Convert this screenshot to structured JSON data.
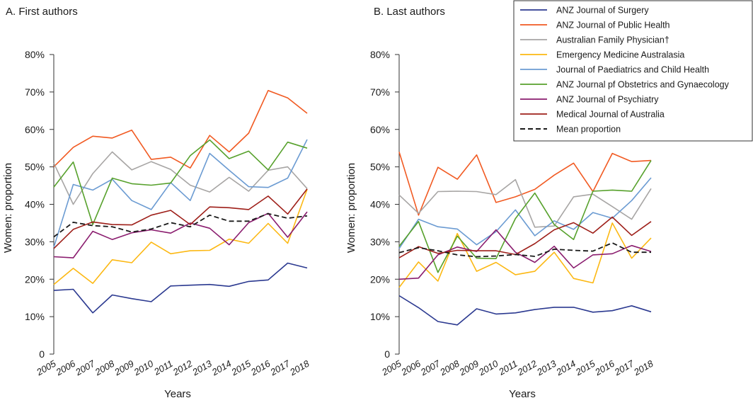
{
  "chart_data": [
    {
      "type": "line",
      "title": "A. First authors",
      "xlabel": "Years",
      "ylabel": "Women: proportion",
      "ylim": [
        0,
        80
      ],
      "yticks": [
        "0",
        "10%",
        "20%",
        "30%",
        "40%",
        "50%",
        "60%",
        "70%",
        "80%"
      ],
      "categories": [
        "2005",
        "2006",
        "2007",
        "2008",
        "2009",
        "2010",
        "2011",
        "2012",
        "2013",
        "2014",
        "2015",
        "2016",
        "2017",
        "2018"
      ],
      "series": [
        {
          "name": "ANZ Journal of Surgery",
          "color": "#2b3990",
          "values": [
            17.0,
            17.3,
            11.0,
            15.8,
            14.8,
            14.0,
            18.2,
            18.4,
            18.6,
            18.1,
            19.4,
            19.8,
            24.3,
            23.0
          ]
        },
        {
          "name": "ANZ Journal of Public Health",
          "color": "#f15a22",
          "values": [
            50.0,
            55.2,
            58.2,
            57.7,
            59.8,
            52.0,
            52.6,
            49.7,
            58.4,
            54.0,
            59.0,
            70.4,
            68.4,
            64.3
          ]
        },
        {
          "name": "Australian Family Physician†",
          "color": "#a7a5a4",
          "values": [
            51.0,
            40.0,
            48.2,
            54.0,
            49.2,
            51.4,
            49.3,
            45.1,
            43.3,
            47.2,
            43.5,
            49.1,
            50.0,
            44.2
          ]
        },
        {
          "name": "Emergency Medicine Australasia",
          "color": "#fcb813",
          "values": [
            18.6,
            22.9,
            18.9,
            25.2,
            24.4,
            29.9,
            26.8,
            27.6,
            27.7,
            30.7,
            29.6,
            34.9,
            29.6,
            44.0
          ]
        },
        {
          "name": "Journal of Paediatrics and Child Health",
          "color": "#6b9bd2",
          "values": [
            28.5,
            45.3,
            43.8,
            46.7,
            41.0,
            38.6,
            45.8,
            41.0,
            53.6,
            49.1,
            44.7,
            44.5,
            47.0,
            57.3
          ]
        },
        {
          "name": "ANZ Journal pf Obstetrics and Gynaecology",
          "color": "#57a12c",
          "values": [
            44.6,
            51.3,
            34.6,
            47.0,
            45.5,
            45.1,
            45.7,
            53.0,
            57.2,
            52.2,
            54.2,
            49.2,
            56.6,
            55.0
          ]
        },
        {
          "name": "ANZ Journal of Psychiatry",
          "color": "#8a1c6e",
          "values": [
            26.0,
            25.7,
            32.8,
            30.6,
            32.4,
            33.2,
            32.3,
            35.0,
            33.6,
            29.2,
            35.1,
            37.6,
            31.2,
            38.0
          ]
        },
        {
          "name": "Medical Journal of Australia",
          "color": "#9e1f19",
          "values": [
            28.2,
            33.3,
            35.3,
            34.6,
            34.5,
            37.1,
            38.4,
            34.6,
            39.3,
            39.1,
            38.6,
            42.2,
            37.4,
            44.1
          ]
        },
        {
          "name": "Mean proportion",
          "color": "#1a1a1a",
          "dashed": true,
          "values": [
            31.3,
            35.2,
            34.3,
            34.0,
            32.6,
            33.4,
            35.1,
            34.0,
            37.1,
            35.5,
            35.5,
            37.5,
            36.3,
            36.9
          ]
        }
      ]
    },
    {
      "type": "line",
      "title": "B. Last authors",
      "xlabel": "Years",
      "ylabel": "Women: proportion",
      "ylim": [
        0,
        80
      ],
      "yticks": [
        "0",
        "10%",
        "20%",
        "30%",
        "40%",
        "50%",
        "60%",
        "70%",
        "80%"
      ],
      "categories": [
        "2005",
        "2006",
        "2007",
        "2008",
        "2009",
        "2010",
        "2011",
        "2012",
        "2013",
        "2014",
        "2015",
        "2016",
        "2017",
        "2018"
      ],
      "series": [
        {
          "name": "ANZ Journal of Surgery",
          "color": "#2b3990",
          "values": [
            15.6,
            12.4,
            8.7,
            7.8,
            12.1,
            10.7,
            11.0,
            11.9,
            12.5,
            12.5,
            11.2,
            11.6,
            12.9,
            11.3
          ]
        },
        {
          "name": "ANZ Journal of Public Health",
          "color": "#f15a22",
          "values": [
            54.0,
            37.1,
            49.9,
            46.7,
            53.2,
            40.5,
            42.0,
            44.0,
            47.8,
            51.0,
            43.4,
            53.6,
            51.4,
            51.7
          ]
        },
        {
          "name": "Australian Family Physician†",
          "color": "#a7a5a4",
          "values": [
            42.5,
            37.6,
            43.4,
            43.5,
            43.4,
            42.6,
            46.6,
            33.9,
            34.2,
            42.0,
            42.7,
            39.4,
            36.0,
            44.2
          ]
        },
        {
          "name": "Emergency Medicine Australasia",
          "color": "#fcb813",
          "values": [
            17.8,
            24.6,
            19.5,
            32.2,
            22.1,
            24.5,
            21.2,
            22.1,
            27.2,
            20.2,
            19.0,
            35.0,
            25.6,
            31.0
          ]
        },
        {
          "name": "Journal of Paediatrics and Child Health",
          "color": "#6b9bd2",
          "values": [
            28.2,
            36.0,
            34.0,
            33.4,
            29.2,
            32.7,
            38.5,
            31.6,
            35.6,
            33.3,
            37.8,
            36.3,
            41.0,
            47.1
          ]
        },
        {
          "name": "ANZ Journal pf Obstetrics and Gynaecology",
          "color": "#57a12c",
          "values": [
            28.8,
            35.4,
            21.8,
            31.5,
            25.6,
            25.5,
            36.2,
            43.0,
            34.6,
            30.6,
            43.5,
            43.8,
            43.5,
            51.7
          ]
        },
        {
          "name": "ANZ Journal of Psychiatry",
          "color": "#8a1c6e",
          "values": [
            20.0,
            20.3,
            26.5,
            28.6,
            27.4,
            33.2,
            27.2,
            24.5,
            28.8,
            23.0,
            26.5,
            26.8,
            29.0,
            27.4
          ]
        },
        {
          "name": "Medical Journal of Australia",
          "color": "#9e1f19",
          "values": [
            25.7,
            28.7,
            26.9,
            27.7,
            27.6,
            27.6,
            26.6,
            29.5,
            33.2,
            35.1,
            32.3,
            36.6,
            31.7,
            35.4
          ]
        },
        {
          "name": "Mean proportion",
          "color": "#1a1a1a",
          "dashed": true,
          "values": [
            27.1,
            28.4,
            27.6,
            26.5,
            26.0,
            26.2,
            26.6,
            26.1,
            28.0,
            27.7,
            27.5,
            29.7,
            27.2,
            27.2
          ]
        }
      ]
    }
  ],
  "legend": {
    "position": "top-right",
    "items": [
      {
        "name": "ANZ Journal of Surgery",
        "color": "#2b3990"
      },
      {
        "name": "ANZ Journal of Public Health",
        "color": "#f15a22"
      },
      {
        "name": "Australian Family Physician†",
        "color": "#a7a5a4"
      },
      {
        "name": "Emergency Medicine Australasia",
        "color": "#fcb813"
      },
      {
        "name": "Journal of Paediatrics and Child Health",
        "color": "#6b9bd2"
      },
      {
        "name": "ANZ Journal pf Obstetrics and Gynaecology",
        "color": "#57a12c"
      },
      {
        "name": "ANZ Journal of Psychiatry",
        "color": "#8a1c6e"
      },
      {
        "name": "Medical Journal of Australia",
        "color": "#9e1f19"
      },
      {
        "name": "Mean proportion",
        "color": "#1a1a1a",
        "dashed": true
      }
    ]
  }
}
